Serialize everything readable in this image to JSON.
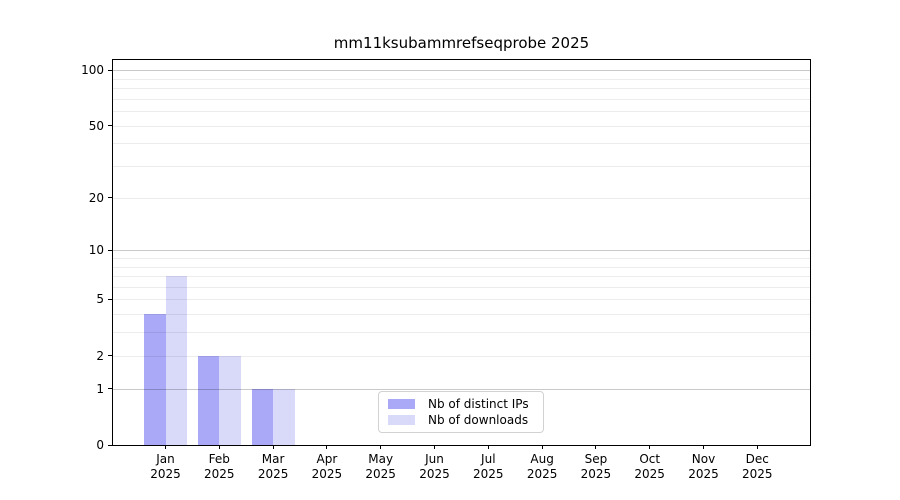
{
  "chart_data": {
    "type": "bar",
    "title": "mm11ksubammrefseqprobe 2025",
    "year_label": "2025",
    "categories": [
      "Jan",
      "Feb",
      "Mar",
      "Apr",
      "May",
      "Jun",
      "Jul",
      "Aug",
      "Sep",
      "Oct",
      "Nov",
      "Dec"
    ],
    "series": [
      {
        "name": "Nb of distinct IPs",
        "color": "#a9a9f8",
        "values": [
          4,
          2,
          1,
          0,
          0,
          0,
          0,
          0,
          0,
          0,
          0,
          0
        ]
      },
      {
        "name": "Nb of downloads",
        "color": "#d9d9fa",
        "values": [
          7,
          2,
          1,
          0,
          0,
          0,
          0,
          0,
          0,
          0,
          0,
          0
        ]
      }
    ],
    "xlabel": "",
    "ylabel": "",
    "yscale": "log10(1+v) symlog-like",
    "ylim": [
      0,
      114
    ],
    "yticks": [
      0,
      1,
      2,
      5,
      10,
      20,
      50,
      100
    ],
    "grid": {
      "enabled": true,
      "major_values": [
        1,
        10,
        100
      ],
      "minor_values": [
        2,
        3,
        4,
        5,
        6,
        7,
        8,
        9,
        20,
        30,
        40,
        50,
        60,
        70,
        80,
        90
      ],
      "major_color": "#c9c9c9",
      "minor_color": "#ececec"
    },
    "legend": {
      "position": "lower center"
    }
  }
}
